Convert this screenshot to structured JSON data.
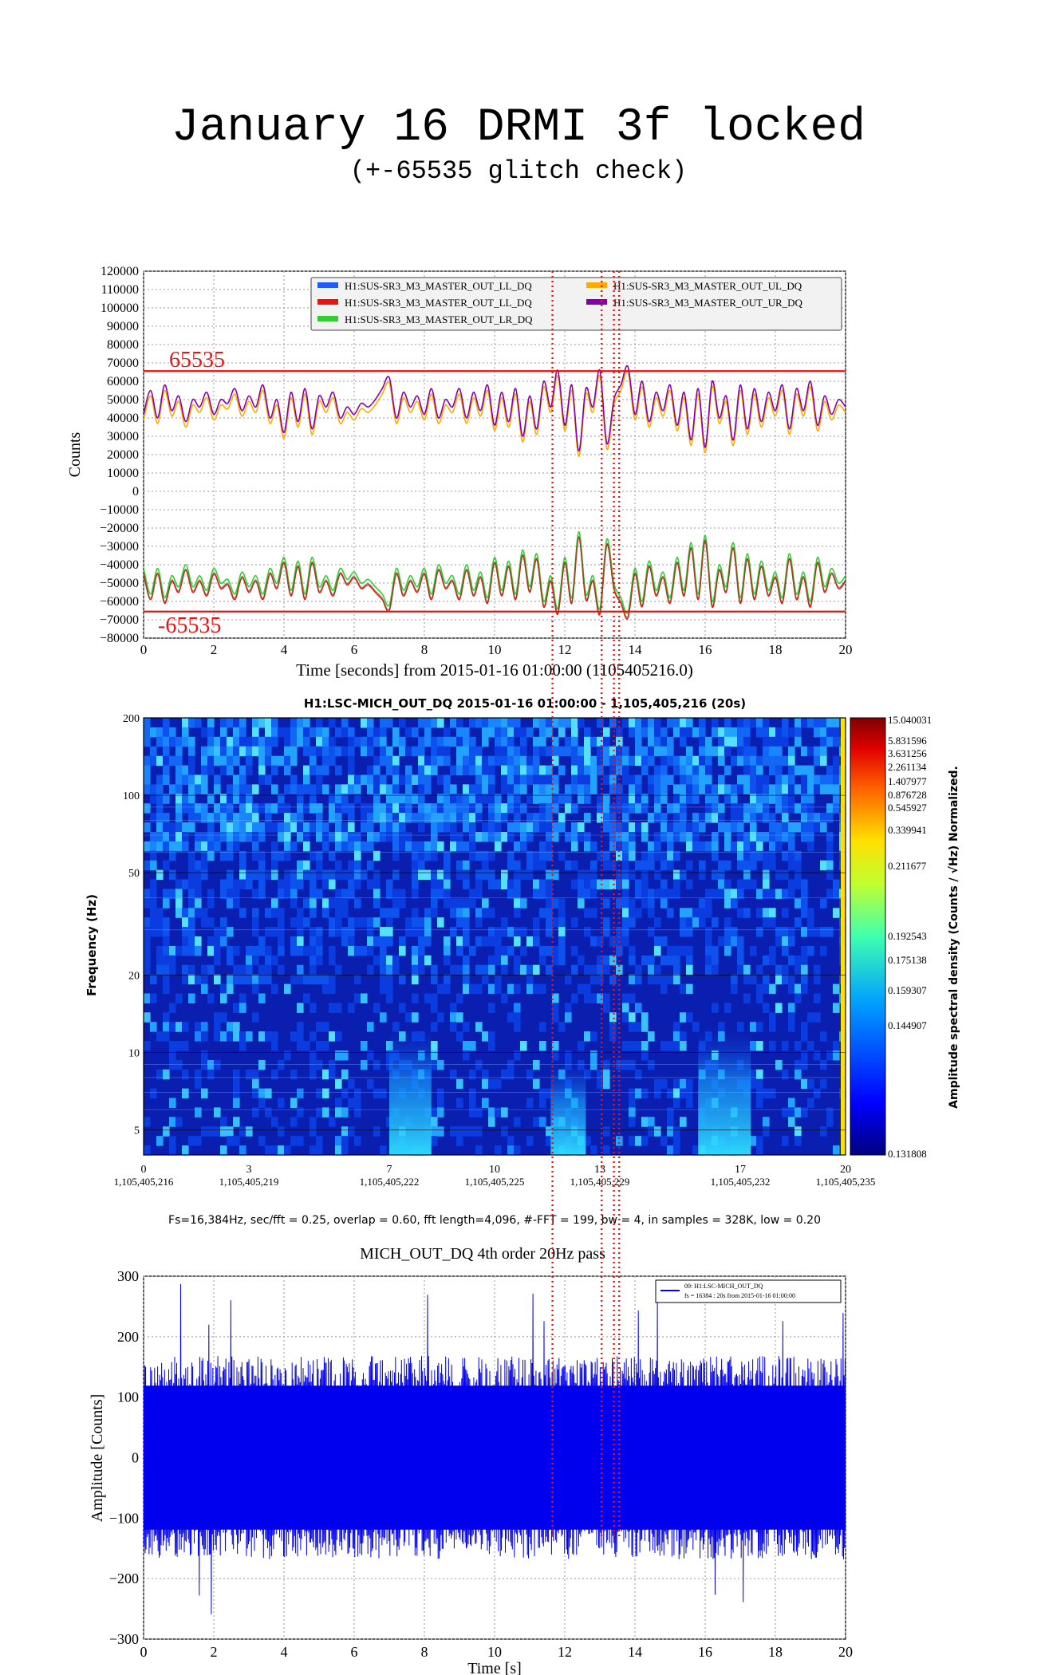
{
  "page": {
    "title": "January 16 DRMI 3f locked",
    "subtitle": "(+-65535 glitch check)"
  },
  "colors": {
    "LL_blue": "#1f5cff",
    "LL_red": "#ee1111",
    "LR_green": "#33cc33",
    "UL_orange": "#ffaa00",
    "UR_purple": "#8800aa",
    "threshold": "#ee1111",
    "marker": "#ee1111",
    "mich": "#0000ee"
  },
  "chart_data": [
    {
      "type": "line",
      "xlabel": "Time [seconds] from 2015-01-16 01:00:00 (1105405216.0)",
      "ylabel": "Counts",
      "xlim": [
        0,
        20
      ],
      "ylim": [
        -80000,
        120000
      ],
      "x_ticks": [
        0,
        2,
        4,
        6,
        8,
        10,
        12,
        14,
        16,
        18,
        20
      ],
      "y_ticks": [
        120000,
        110000,
        100000,
        90000,
        80000,
        70000,
        60000,
        50000,
        40000,
        30000,
        20000,
        10000,
        0,
        -10000,
        -20000,
        -30000,
        -40000,
        -50000,
        -60000,
        -70000,
        -80000
      ],
      "y_tick_labels": [
        "120000",
        "110000",
        "100000",
        "90000",
        "80000",
        "70000",
        "60000",
        "50000",
        "40000",
        "30000",
        "20000",
        "10000",
        "0",
        "−10000",
        "−20000",
        "−30000",
        "−40000",
        "−50000",
        "−60000",
        "−70000",
        "−80000"
      ],
      "grid": true,
      "legend_position": "top-right",
      "legend": [
        {
          "name": "H1:SUS-SR3_M3_MASTER_OUT_LL_DQ",
          "color": "#1f5cff"
        },
        {
          "name": "H1:SUS-SR3_M3_MASTER_OUT_UL_DQ",
          "color": "#ffaa00"
        },
        {
          "name": "H1:SUS-SR3_M3_MASTER_OUT_LL_DQ",
          "color": "#ee1111"
        },
        {
          "name": "H1:SUS-SR3_M3_MASTER_OUT_UR_DQ",
          "color": "#8800aa"
        },
        {
          "name": "H1:SUS-SR3_M3_MASTER_OUT_LR_DQ",
          "color": "#33cc33"
        }
      ],
      "thresholds": [
        {
          "value": 65535,
          "label": "65535"
        },
        {
          "value": -65535,
          "label": "-65535"
        }
      ],
      "series_upper_UR": {
        "x": [
          0.0,
          0.2,
          0.4,
          0.6,
          0.8,
          1.0,
          1.2,
          1.4,
          1.6,
          1.8,
          2.0,
          2.2,
          2.4,
          2.6,
          2.8,
          3.0,
          3.2,
          3.4,
          3.6,
          3.8,
          4.0,
          4.2,
          4.4,
          4.6,
          4.8,
          5.0,
          5.2,
          5.4,
          5.6,
          5.8,
          6.0,
          6.2,
          6.4,
          6.6,
          6.8,
          7.0,
          7.2,
          7.4,
          7.6,
          7.8,
          8.0,
          8.2,
          8.4,
          8.6,
          8.8,
          9.0,
          9.2,
          9.4,
          9.6,
          9.8,
          10.0,
          10.2,
          10.4,
          10.6,
          10.8,
          11.0,
          11.2,
          11.4,
          11.6,
          11.8,
          12.0,
          12.2,
          12.4,
          12.6,
          12.8,
          13.0,
          13.2,
          13.4,
          13.6,
          13.8,
          14.0,
          14.2,
          14.4,
          14.6,
          14.8,
          15.0,
          15.2,
          15.4,
          15.6,
          15.8,
          16.0,
          16.2,
          16.4,
          16.6,
          16.8,
          17.0,
          17.2,
          17.4,
          17.6,
          17.8,
          18.0,
          18.2,
          18.4,
          18.6,
          18.8,
          19.0,
          19.2,
          19.4,
          19.6,
          19.8,
          20.0
        ],
        "values": [
          42000,
          55000,
          40000,
          58000,
          44000,
          52000,
          38000,
          50000,
          46000,
          54000,
          42000,
          50000,
          48000,
          56000,
          44000,
          52000,
          46000,
          58000,
          40000,
          50000,
          32000,
          54000,
          38000,
          56000,
          34000,
          52000,
          46000,
          54000,
          40000,
          46000,
          42000,
          48000,
          46000,
          50000,
          56000,
          62000,
          40000,
          54000,
          46000,
          52000,
          42000,
          56000,
          40000,
          50000,
          46000,
          56000,
          40000,
          54000,
          44000,
          58000,
          36000,
          54000,
          38000,
          56000,
          30000,
          52000,
          34000,
          60000,
          46000,
          66000,
          36000,
          58000,
          22000,
          56000,
          46000,
          66000,
          26000,
          50000,
          58000,
          68000,
          42000,
          60000,
          38000,
          54000,
          44000,
          58000,
          36000,
          54000,
          28000,
          56000,
          24000,
          60000,
          40000,
          52000,
          28000,
          58000,
          34000,
          56000,
          38000,
          54000,
          44000,
          58000,
          34000,
          56000,
          44000,
          60000,
          36000,
          52000,
          42000,
          50000,
          46000
        ]
      },
      "series_upper_UL": {
        "values_offset": -3000
      },
      "series_lower_LR": {
        "values": [
          -42000,
          -56000,
          -42000,
          -58000,
          -46000,
          -52000,
          -40000,
          -52000,
          -46000,
          -54000,
          -42000,
          -50000,
          -48000,
          -56000,
          -44000,
          -52000,
          -46000,
          -56000,
          -42000,
          -50000,
          -36000,
          -54000,
          -38000,
          -56000,
          -36000,
          -52000,
          -46000,
          -54000,
          -42000,
          -48000,
          -44000,
          -50000,
          -48000,
          -52000,
          -56000,
          -62000,
          -42000,
          -54000,
          -46000,
          -52000,
          -42000,
          -56000,
          -40000,
          -50000,
          -46000,
          -56000,
          -40000,
          -54000,
          -44000,
          -58000,
          -36000,
          -54000,
          -38000,
          -56000,
          -32000,
          -52000,
          -34000,
          -60000,
          -46000,
          -64000,
          -36000,
          -58000,
          -22000,
          -56000,
          -46000,
          -64000,
          -26000,
          -50000,
          -58000,
          -66000,
          -42000,
          -60000,
          -38000,
          -54000,
          -44000,
          -58000,
          -36000,
          -54000,
          -28000,
          -56000,
          -24000,
          -60000,
          -40000,
          -52000,
          -28000,
          -58000,
          -34000,
          -56000,
          -38000,
          -54000,
          -44000,
          -58000,
          -34000,
          -56000,
          -44000,
          -60000,
          -36000,
          -52000,
          -42000,
          -50000,
          -46000
        ]
      },
      "series_lower_LL": {
        "values_offset": -3000
      },
      "vertical_markers_x": [
        11.65,
        13.05,
        13.4,
        13.55
      ]
    },
    {
      "type": "heatmap",
      "title": "H1:LSC-MICH_OUT_DQ 2015-01-16 01:00:00 - 1,105,405,216 (20s)",
      "ylabel": "Frequency (Hz)",
      "colorbar_label": "Amplitude spectral density (Counts / √Hz) Normalized.",
      "x_ticks": [
        0,
        3,
        7,
        10,
        13,
        17,
        20
      ],
      "x_tick_labels_top": [
        "0",
        "3",
        "7",
        "10",
        "13",
        "17",
        "20"
      ],
      "x_tick_labels_bottom": [
        "1,105,405,216",
        "1,105,405,219",
        "1,105,405,222",
        "1,105,405,225",
        "1,105,405,229",
        "1,105,405,232",
        "1,105,405,235"
      ],
      "y_scale": "log",
      "ylim": [
        4,
        200
      ],
      "y_ticks": [
        5,
        10,
        20,
        50,
        100,
        200
      ],
      "colorbar_ticks": [
        "15.040031",
        "5.831596",
        "3.631256",
        "2.261134",
        "1.407977",
        "0.876728",
        "0.545927",
        "0.339941",
        "0.211677",
        "0.192543",
        "0.175138",
        "0.159307",
        "0.144907",
        "0.131808"
      ],
      "caption": "Fs=16,384Hz, sec/fft = 0.25, overlap = 0.60, fft length=4,096, #-FFT = 199, bw = 4, in samples = 328K, low = 0.20",
      "bright_regions": [
        {
          "t_start": 7.0,
          "t_end": 8.2,
          "f_max": 12
        },
        {
          "t_start": 11.6,
          "t_end": 12.6,
          "f_max": 9
        },
        {
          "t_start": 15.8,
          "t_end": 17.3,
          "f_max": 12
        }
      ]
    },
    {
      "type": "line",
      "title": "MICH_OUT_DQ 4th order 20Hz pass",
      "xlabel": "Time [s]",
      "ylabel": "Amplitude [Counts]",
      "xlim": [
        0,
        20
      ],
      "ylim": [
        -300,
        300
      ],
      "x_ticks": [
        0,
        2,
        4,
        6,
        8,
        10,
        12,
        14,
        16,
        18,
        20
      ],
      "y_ticks": [
        300,
        200,
        100,
        0,
        -100,
        -200,
        -300
      ],
      "y_tick_labels": [
        "300",
        "200",
        "100",
        "0",
        "−100",
        "−200",
        "−300"
      ],
      "grid": true,
      "legend_position": "top-right",
      "legend": [
        {
          "name": "09: H1:LSC-MICH_OUT_DQ",
          "detail": "fs = 16384 : 20s from 2015-01-16 01:00:00",
          "color": "#0000ee"
        }
      ],
      "series": [
        {
          "envelope_typical": 140,
          "peak_max": 290,
          "peak_min": -290
        }
      ]
    }
  ]
}
